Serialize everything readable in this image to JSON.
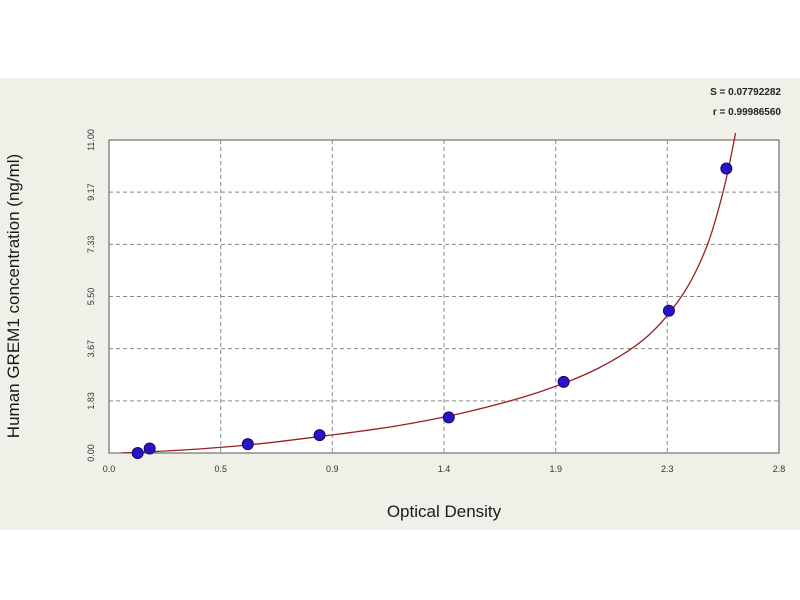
{
  "chart_data": {
    "type": "scatter",
    "xlabel": "Optical Density",
    "ylabel": "Human GREM1 concentration (ng/ml)",
    "x_ticks": [
      "0.0",
      "0.5",
      "0.9",
      "1.4",
      "1.9",
      "2.3",
      "2.8"
    ],
    "x_tick_values": [
      0.0,
      0.467,
      0.933,
      1.4,
      1.867,
      2.333,
      2.8
    ],
    "y_ticks": [
      "0.00",
      "1.83",
      "3.67",
      "5.50",
      "7.33",
      "9.17",
      "11.00"
    ],
    "y_tick_values": [
      0.0,
      1.833,
      3.667,
      5.5,
      7.333,
      9.167,
      11.0
    ],
    "xlim": [
      0.0,
      2.8
    ],
    "ylim": [
      0.0,
      11.0
    ],
    "grid": true,
    "stats": {
      "s_label": "S = 0.07792282",
      "r_label": "r = 0.99986560"
    },
    "series": [
      {
        "points": [
          {
            "x": 0.12,
            "y": 0.0
          },
          {
            "x": 0.17,
            "y": 0.16
          },
          {
            "x": 0.58,
            "y": 0.31
          },
          {
            "x": 0.88,
            "y": 0.63
          },
          {
            "x": 1.42,
            "y": 1.25
          },
          {
            "x": 1.9,
            "y": 2.5
          },
          {
            "x": 2.34,
            "y": 5.0
          },
          {
            "x": 2.58,
            "y": 10.0
          }
        ],
        "fit": [
          {
            "x": 0.05,
            "y": 0.0
          },
          {
            "x": 0.3,
            "y": 0.1
          },
          {
            "x": 0.6,
            "y": 0.3
          },
          {
            "x": 0.9,
            "y": 0.6
          },
          {
            "x": 1.2,
            "y": 0.95
          },
          {
            "x": 1.5,
            "y": 1.45
          },
          {
            "x": 1.8,
            "y": 2.15
          },
          {
            "x": 2.05,
            "y": 3.0
          },
          {
            "x": 2.25,
            "y": 4.1
          },
          {
            "x": 2.4,
            "y": 5.6
          },
          {
            "x": 2.5,
            "y": 7.3
          },
          {
            "x": 2.57,
            "y": 9.3
          },
          {
            "x": 2.62,
            "y": 11.3
          }
        ]
      }
    ],
    "colors": {
      "marker": "#2a12c8",
      "marker_edge": "#140670",
      "fit_line": "#9a2020",
      "grid": "#8a8a8a",
      "plot_bg": "#ffffff",
      "frame_bg": "#f0f0e8"
    }
  }
}
